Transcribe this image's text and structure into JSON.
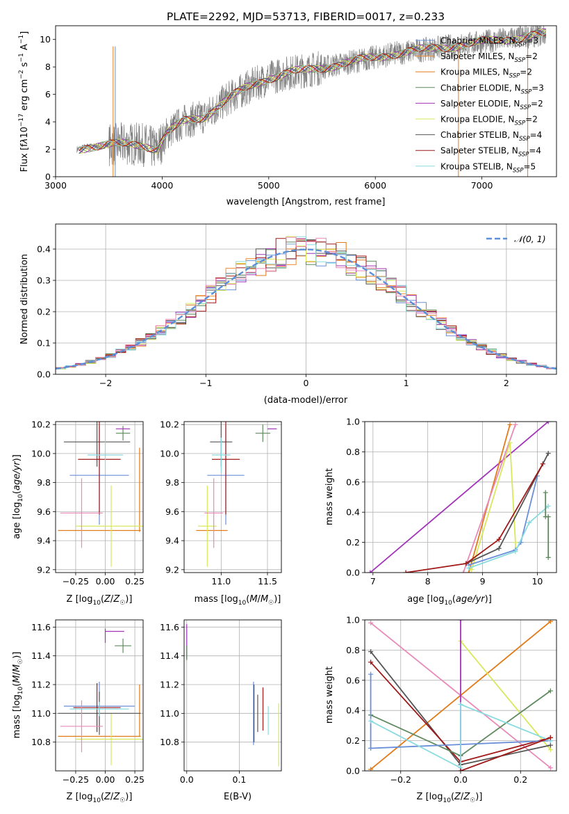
{
  "figure_title": "PLATE=2292, MJD=53713, FIBERID=0017, z=0.233",
  "colors": {
    "chabrier_miles": "#6a8fd8",
    "salpeter_miles": "#f08a2e",
    "kroupa_miles": "#e07b1a",
    "chabrier_elodie": "#5e8a5e",
    "salpeter_elodie": "#a233b8",
    "kroupa_elodie": "#d8e85a",
    "chabrier_stelib": "#555555",
    "salpeter_stelib": "#a01818",
    "kroupa_stelib": "#8adbe0",
    "data": "#808080",
    "normal": "#5b8fd8",
    "pink": "#e889b8"
  },
  "chart_data": [
    {
      "id": "spectrum",
      "type": "line",
      "title": "PLATE=2292, MJD=53713, FIBERID=0017, z=0.233",
      "xlabel": "wavelength [Angstrom, rest frame]",
      "ylabel": "Flux [fλ10⁻¹⁷ erg cm⁻² s⁻¹ A⁻¹]",
      "xlim": [
        3000,
        7700
      ],
      "ylim": [
        0,
        11
      ],
      "xticks": [
        "3000",
        "4000",
        "5000",
        "6000",
        "7000"
      ],
      "yticks": [
        "0",
        "2",
        "4",
        "6",
        "8",
        "10"
      ],
      "legend_position": "top-right",
      "legend": [
        {
          "label": "Chabrier MILES, N",
          "sub": "SSP",
          "suffix": "=3",
          "color": "#6a8fd8"
        },
        {
          "label": "Salpeter MILES, N",
          "sub": "SSP",
          "suffix": "=2",
          "color": "#f08a2e"
        },
        {
          "label": "Kroupa MILES, N",
          "sub": "SSP",
          "suffix": "=2",
          "color": "#e07b1a"
        },
        {
          "label": "Chabrier ELODIE, N",
          "sub": "SSP",
          "suffix": "=3",
          "color": "#5e8a5e"
        },
        {
          "label": "Salpeter ELODIE, N",
          "sub": "SSP",
          "suffix": "=2",
          "color": "#a233b8"
        },
        {
          "label": "Kroupa ELODIE, N",
          "sub": "SSP",
          "suffix": "=2",
          "color": "#d8e85a"
        },
        {
          "label": "Chabrier STELIB, N",
          "sub": "SSP",
          "suffix": "=4",
          "color": "#555555"
        },
        {
          "label": "Salpeter STELIB, N",
          "sub": "SSP",
          "suffix": "=4",
          "color": "#a01818"
        },
        {
          "label": "Kroupa STELIB, N",
          "sub": "SSP",
          "suffix": "=5",
          "color": "#8adbe0"
        }
      ],
      "continuum": [
        [
          3200,
          2.0
        ],
        [
          3300,
          2.2
        ],
        [
          3500,
          2.3
        ],
        [
          3700,
          2.4
        ],
        [
          3850,
          2.3
        ],
        [
          3950,
          2.0
        ],
        [
          4050,
          3.2
        ],
        [
          4200,
          4.0
        ],
        [
          4400,
          4.4
        ],
        [
          4600,
          5.6
        ],
        [
          4800,
          6.5
        ],
        [
          5000,
          7.2
        ],
        [
          5200,
          7.6
        ],
        [
          5400,
          7.8
        ],
        [
          5600,
          8.1
        ],
        [
          5800,
          8.4
        ],
        [
          6000,
          8.7
        ],
        [
          6200,
          9.0
        ],
        [
          6400,
          9.2
        ],
        [
          6600,
          9.4
        ],
        [
          6800,
          9.6
        ],
        [
          7000,
          9.8
        ],
        [
          7200,
          10.0
        ],
        [
          7400,
          10.2
        ],
        [
          7600,
          10.4
        ]
      ]
    },
    {
      "id": "residuals",
      "type": "histogram",
      "xlabel": "(data-model)/error",
      "ylabel": "Normed distribution",
      "xlim": [
        -2.5,
        2.5
      ],
      "ylim": [
        0,
        0.48
      ],
      "xticks": [
        "−2",
        "−1",
        "0",
        "1",
        "2"
      ],
      "yticks": [
        "0.0",
        "0.1",
        "0.2",
        "0.3",
        "0.4"
      ],
      "legend": [
        {
          "label": "𝒩(0, 1)",
          "color": "#5b8fd8",
          "style": "dashed"
        }
      ],
      "legend_position": "top-right",
      "bin_edges_start": -2.5,
      "bin_width": 0.1
    },
    {
      "id": "age_vs_Z",
      "type": "errorbar",
      "xlabel": "Z [log₁₀(Z/Z☉)]",
      "ylabel": "age  [log₁₀(age/yr)]",
      "xlim": [
        -0.42,
        0.32
      ],
      "ylim": [
        9.18,
        10.22
      ],
      "xticks": [
        "−0.25",
        "0.00",
        "0.25"
      ],
      "yticks": [
        "9.2",
        "9.4",
        "9.6",
        "9.8",
        "10.0",
        "10.2"
      ],
      "points": [
        {
          "x": -0.05,
          "xerr": 0.25,
          "y": 9.85,
          "yerr": 0.34,
          "color": "#6a8fd8"
        },
        {
          "x": -0.05,
          "xerr": 0.35,
          "y": 9.47,
          "yerr": 0.0,
          "color": "#e07b1a"
        },
        {
          "x": 0.29,
          "xerr": 0.0,
          "y": 9.75,
          "yerr": 0.29,
          "color": "#e07b1a"
        },
        {
          "x": 0.15,
          "xerr": 0.06,
          "y": 10.14,
          "yerr": 0.05,
          "color": "#5e8a5e"
        },
        {
          "x": 0.15,
          "xerr": 0.06,
          "y": 10.17,
          "yerr": 0.0,
          "color": "#a233b8"
        },
        {
          "x": 0.05,
          "xerr": 0.3,
          "y": 9.5,
          "yerr": 0.28,
          "color": "#d8e85a"
        },
        {
          "x": -0.07,
          "xerr": 0.28,
          "y": 10.08,
          "yerr": 0.17,
          "color": "#555555"
        },
        {
          "x": -0.05,
          "xerr": 0.18,
          "y": 9.96,
          "yerr": 0.38,
          "color": "#a01818"
        },
        {
          "x": 0.0,
          "xerr": 0.15,
          "y": 9.99,
          "yerr": 0.1,
          "color": "#8adbe0"
        },
        {
          "x": -0.2,
          "xerr": 0.18,
          "y": 9.59,
          "yerr": 0.24,
          "color": "#e889b8"
        }
      ]
    },
    {
      "id": "age_vs_mass",
      "type": "errorbar",
      "xlabel": "mass [log₁₀(M/M☉)]",
      "xlim": [
        10.6,
        11.65
      ],
      "ylim": [
        9.18,
        10.22
      ],
      "xticks": [
        "11.0",
        "11.5"
      ],
      "yticks": [
        "9.2",
        "9.4",
        "9.6",
        "9.8",
        "10.0",
        "10.2"
      ],
      "points": [
        {
          "x": 11.05,
          "xerr": 0.2,
          "y": 9.85,
          "yerr": 0.34,
          "color": "#6a8fd8"
        },
        {
          "x": 10.9,
          "xerr": 0.17,
          "y": 9.47,
          "yerr": 0.0,
          "color": "#e07b1a"
        },
        {
          "x": 11.45,
          "xerr": 0.08,
          "y": 10.14,
          "yerr": 0.06,
          "color": "#5e8a5e"
        },
        {
          "x": 11.55,
          "xerr": 0.05,
          "y": 10.17,
          "yerr": 0.0,
          "color": "#a233b8"
        },
        {
          "x": 10.85,
          "xerr": 0.1,
          "y": 9.5,
          "yerr": 0.28,
          "color": "#d8e85a"
        },
        {
          "x": 11.0,
          "xerr": 0.12,
          "y": 10.08,
          "yerr": 0.17,
          "color": "#555555"
        },
        {
          "x": 11.05,
          "xerr": 0.15,
          "y": 9.96,
          "yerr": 0.38,
          "color": "#a01818"
        },
        {
          "x": 11.0,
          "xerr": 0.1,
          "y": 9.99,
          "yerr": 0.12,
          "color": "#8adbe0"
        },
        {
          "x": 10.92,
          "xerr": 0.1,
          "y": 9.59,
          "yerr": 0.24,
          "color": "#e889b8"
        }
      ]
    },
    {
      "id": "weight_vs_age",
      "type": "line",
      "xlabel": "age  [log₁₀(age/yr)]",
      "ylabel": "mass weight",
      "xlim": [
        6.85,
        10.35
      ],
      "ylim": [
        0,
        1
      ],
      "xticks": [
        "7",
        "8",
        "9",
        "10"
      ],
      "yticks": [
        "0.0",
        "0.2",
        "0.4",
        "0.6",
        "0.8",
        "1.0"
      ],
      "series": [
        {
          "color": "#a233b8",
          "x": [
            6.95,
            10.2
          ],
          "y": [
            0.0,
            1.0
          ]
        },
        {
          "color": "#e07b1a",
          "x": [
            8.75,
            9.5
          ],
          "y": [
            0.0,
            0.98
          ]
        },
        {
          "color": "#e889b8",
          "x": [
            8.65,
            9.6
          ],
          "y": [
            0.0,
            0.98
          ]
        },
        {
          "color": "#d8e85a",
          "x": [
            8.8,
            9.5,
            9.6,
            9.6
          ],
          "y": [
            0.02,
            0.86,
            0.2,
            0.14
          ]
        },
        {
          "color": "#6a8fd8",
          "x": [
            8.75,
            9.6,
            9.7,
            10.0
          ],
          "y": [
            0.05,
            0.15,
            0.2,
            0.64
          ]
        },
        {
          "color": "#8adbe0",
          "x": [
            8.75,
            9.6,
            9.85,
            10.2
          ],
          "y": [
            0.03,
            0.14,
            0.33,
            0.44
          ]
        },
        {
          "color": "#555555",
          "x": [
            8.7,
            9.3,
            10.2
          ],
          "y": [
            0.06,
            0.16,
            0.79
          ]
        },
        {
          "color": "#a01818",
          "x": [
            7.6,
            8.7,
            9.3,
            10.1
          ],
          "y": [
            0.0,
            0.06,
            0.22,
            0.72
          ]
        },
        {
          "color": "#5e8a5e",
          "x": [
            10.15,
            10.15,
            10.2,
            10.2
          ],
          "y": [
            0.53,
            0.37,
            0.37,
            0.1
          ]
        }
      ]
    },
    {
      "id": "mass_vs_Z",
      "type": "errorbar",
      "xlabel": "Z [log₁₀(Z/Z☉)]",
      "ylabel": "mass [log₁₀(M/M☉)]",
      "xlim": [
        -0.42,
        0.32
      ],
      "ylim": [
        10.6,
        11.65
      ],
      "xticks": [
        "−0.25",
        "0.00",
        "0.25"
      ],
      "yticks": [
        "10.8",
        "11.0",
        "11.2",
        "11.4",
        "11.6"
      ],
      "points": [
        {
          "x": -0.05,
          "xerr": 0.3,
          "y": 11.05,
          "yerr": 0.17,
          "color": "#6a8fd8"
        },
        {
          "x": -0.05,
          "xerr": 0.35,
          "y": 10.84,
          "yerr": 0.0,
          "color": "#e07b1a"
        },
        {
          "x": 0.29,
          "xerr": 0.0,
          "y": 11.02,
          "yerr": 0.18,
          "color": "#e07b1a"
        },
        {
          "x": 0.15,
          "xerr": 0.07,
          "y": 11.47,
          "yerr": 0.05,
          "color": "#5e8a5e"
        },
        {
          "x": 0.08,
          "xerr": 0.08,
          "y": 11.57,
          "yerr": 0.0,
          "color": "#a233b8"
        },
        {
          "x": 0.0,
          "xerr": 0.0,
          "y": 11.54,
          "yerr": 0.05,
          "color": "#a233b8"
        },
        {
          "x": 0.05,
          "xerr": 0.3,
          "y": 10.82,
          "yerr": 0.18,
          "color": "#d8e85a"
        },
        {
          "x": -0.05,
          "xerr": 0.35,
          "y": 11.0,
          "yerr": 0.15,
          "color": "#555555"
        },
        {
          "x": -0.07,
          "xerr": 0.2,
          "y": 11.04,
          "yerr": 0.17,
          "color": "#a01818"
        },
        {
          "x": -0.05,
          "xerr": 0.25,
          "y": 11.03,
          "yerr": 0.05,
          "color": "#8adbe0"
        },
        {
          "x": -0.2,
          "xerr": 0.18,
          "y": 10.91,
          "yerr": 0.18,
          "color": "#e889b8"
        }
      ]
    },
    {
      "id": "mass_vs_ebv",
      "type": "errorbar",
      "xlabel": "E(B-V)",
      "xlim": [
        -0.005,
        0.18
      ],
      "ylim": [
        10.6,
        11.65
      ],
      "xticks": [
        "0.0",
        "0.1"
      ],
      "yticks": [
        "10.8",
        "11.0",
        "11.2",
        "11.4",
        "11.6"
      ],
      "points": [
        {
          "x": 0.0,
          "y": 11.5,
          "yerr": 0.12,
          "color": "#a233b8"
        },
        {
          "x": 0.0,
          "y": 11.42,
          "yerr": 0.05,
          "color": "#5e8a5e"
        },
        {
          "x": 0.127,
          "y": 11.0,
          "yerr": 0.22,
          "color": "#6a8fd8"
        },
        {
          "x": 0.128,
          "y": 11.0,
          "yerr": 0.2,
          "color": "#555555"
        },
        {
          "x": 0.135,
          "y": 11.0,
          "yerr": 0.13,
          "color": "#555555"
        },
        {
          "x": 0.145,
          "y": 11.03,
          "yerr": 0.15,
          "color": "#a01818"
        },
        {
          "x": 0.155,
          "y": 10.95,
          "yerr": 0.1,
          "color": "#8adbe0"
        },
        {
          "x": 0.175,
          "y": 10.85,
          "yerr": 0.22,
          "color": "#d8e85a"
        }
      ]
    },
    {
      "id": "weight_vs_Z",
      "type": "line",
      "xlabel": "Z [log₁₀(Z/Z☉)]",
      "ylabel": "mass weight",
      "xlim": [
        -0.32,
        0.32
      ],
      "ylim": [
        0,
        1
      ],
      "xticks": [
        "−0.2",
        "0.0",
        "0.2"
      ],
      "yticks": [
        "0.0",
        "0.2",
        "0.4",
        "0.6",
        "0.8",
        "1.0"
      ],
      "series": [
        {
          "color": "#e889b8",
          "x": [
            -0.3,
            0.3
          ],
          "y": [
            0.98,
            0.02
          ]
        },
        {
          "color": "#e07b1a",
          "x": [
            -0.3,
            0.3
          ],
          "y": [
            0.01,
            0.99
          ]
        },
        {
          "color": "#d8e85a",
          "x": [
            0.0,
            0.3
          ],
          "y": [
            0.86,
            0.14
          ]
        },
        {
          "color": "#a233b8",
          "x": [
            0.0,
            0.0
          ],
          "y": [
            1.0,
            0.0
          ]
        },
        {
          "color": "#555555",
          "x": [
            -0.3,
            0.0,
            0.3
          ],
          "y": [
            0.79,
            0.04,
            0.17
          ]
        },
        {
          "color": "#a01818",
          "x": [
            -0.3,
            0.0,
            0.3
          ],
          "y": [
            0.72,
            0.06,
            0.22
          ]
        },
        {
          "color": "#5e8a5e",
          "x": [
            -0.3,
            0.0,
            0.3
          ],
          "y": [
            0.37,
            0.1,
            0.53
          ]
        },
        {
          "color": "#6a8fd8",
          "x": [
            -0.3,
            -0.3,
            0.3
          ],
          "y": [
            0.64,
            0.15,
            0.2
          ]
        },
        {
          "color": "#8adbe0",
          "x": [
            -0.3,
            0.0,
            0.0,
            0.3
          ],
          "y": [
            0.33,
            0.02,
            0.44,
            0.2
          ]
        },
        {
          "color": "#a01818",
          "x": [
            0.0,
            0.3
          ],
          "y": [
            0.0,
            0.22
          ]
        }
      ]
    }
  ]
}
